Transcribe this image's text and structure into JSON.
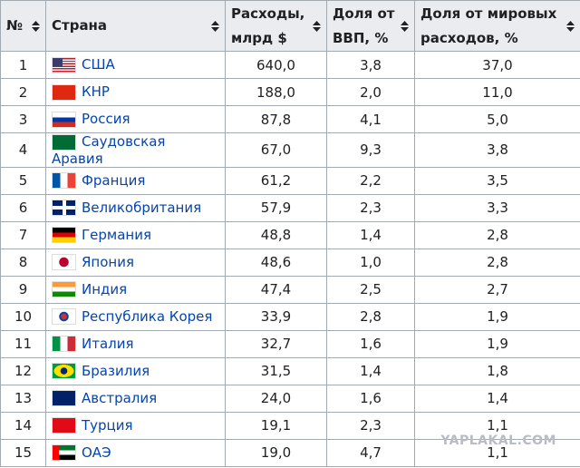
{
  "table": {
    "header": [
      "№",
      "Страна",
      "Расходы, млрд $",
      "Доля от ВВП, %",
      "Доля от мировых расходов, %"
    ],
    "rows": [
      [
        "1",
        "США",
        "640,0",
        "3,8",
        "37,0"
      ],
      [
        "2",
        "КНР",
        "188,0",
        "2,0",
        "11,0"
      ],
      [
        "3",
        "Россия",
        "87,8",
        "4,1",
        "5,0"
      ],
      [
        "4",
        "Саудовская Аравия",
        "67,0",
        "9,3",
        "3,8"
      ],
      [
        "5",
        "Франция",
        "61,2",
        "2,2",
        "3,5"
      ],
      [
        "6",
        "Великобритания",
        "57,9",
        "2,3",
        "3,3"
      ],
      [
        "7",
        "Германия",
        "48,8",
        "1,4",
        "2,8"
      ],
      [
        "8",
        "Япония",
        "48,6",
        "1,0",
        "2,8"
      ],
      [
        "9",
        "Индия",
        "47,4",
        "2,5",
        "2,7"
      ],
      [
        "10",
        "Республика Корея",
        "33,9",
        "2,8",
        "1,9"
      ],
      [
        "11",
        "Италия",
        "32,7",
        "1,6",
        "1,9"
      ],
      [
        "12",
        "Бразилия",
        "31,5",
        "1,4",
        "1,8"
      ],
      [
        "13",
        "Австралия",
        "24,0",
        "1,6",
        "1,4"
      ],
      [
        "14",
        "Турция",
        "19,1",
        "2,3",
        "1,1"
      ],
      [
        "15",
        "ОАЭ",
        "19,0",
        "4,7",
        "1,1"
      ]
    ]
  },
  "watermark": "YAPLAKAL.COM"
}
